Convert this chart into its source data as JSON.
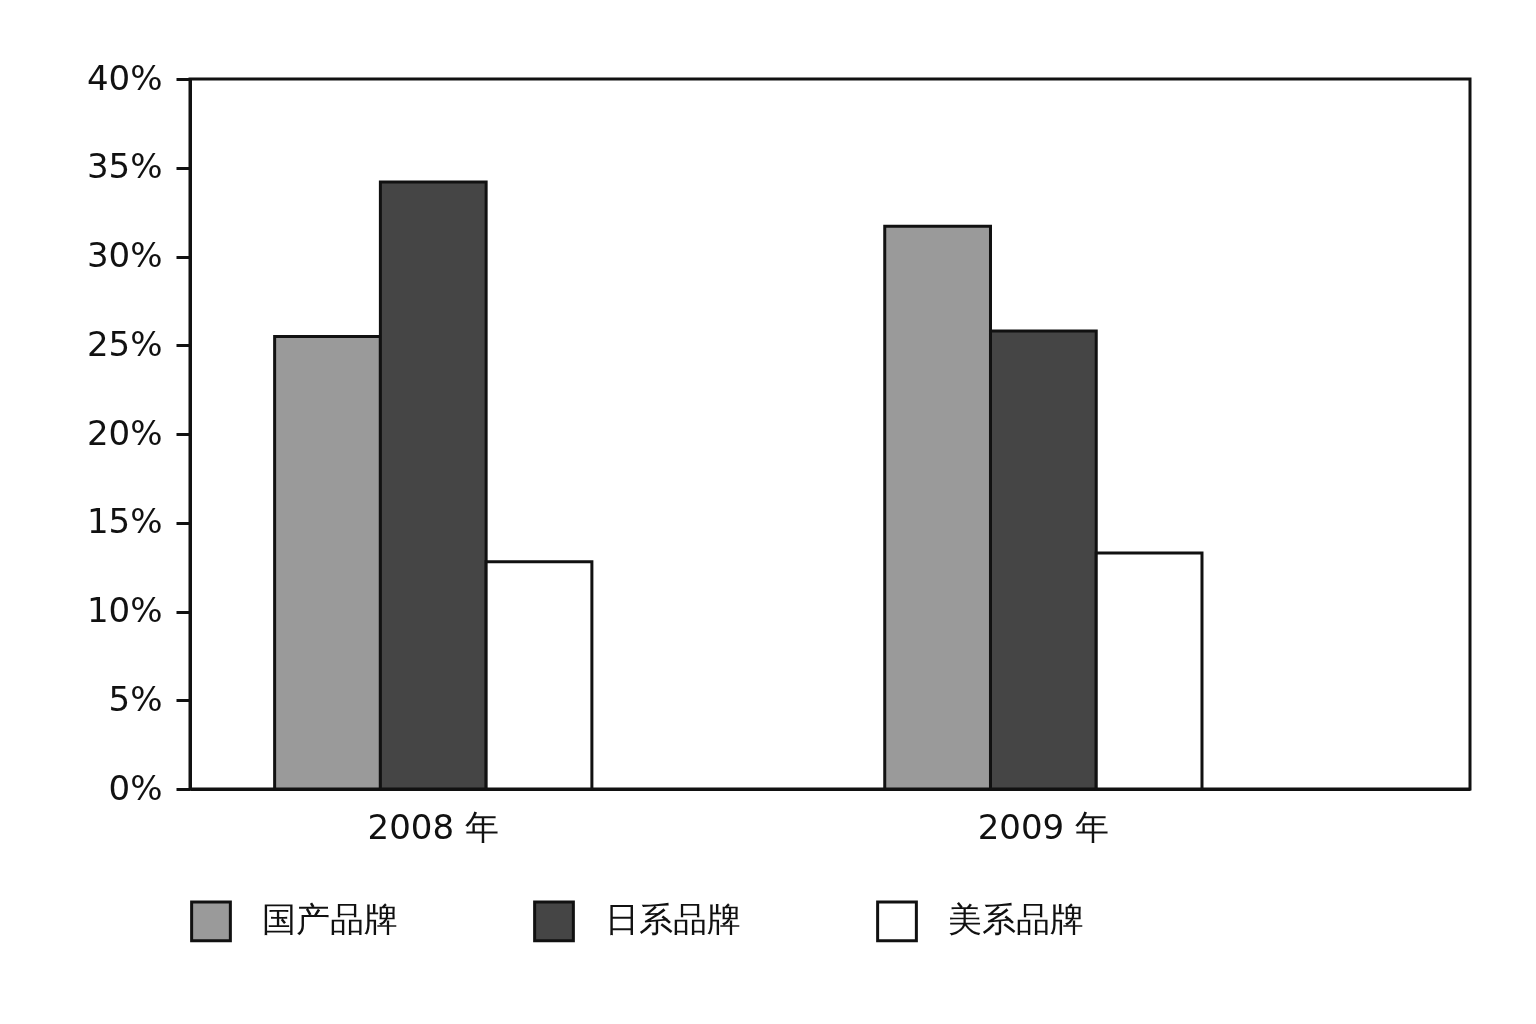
{
  "chart_data": {
    "type": "bar",
    "categories": [
      "2008 年",
      "2009 年"
    ],
    "series": [
      {
        "name": "国产品牌",
        "color": "#9a9a9a",
        "values": [
          25.5,
          31.7
        ]
      },
      {
        "name": "日系品牌",
        "color": "#454545",
        "values": [
          34.2,
          25.8
        ]
      },
      {
        "name": "美系品牌",
        "color": "#ffffff",
        "values": [
          12.8,
          13.3
        ]
      }
    ],
    "ylim": [
      0,
      40
    ],
    "yticks": [
      {
        "value": 0,
        "label": "0%"
      },
      {
        "value": 5,
        "label": "5%"
      },
      {
        "value": 10,
        "label": "10%"
      },
      {
        "value": 15,
        "label": "15%"
      },
      {
        "value": 20,
        "label": "20%"
      },
      {
        "value": 25,
        "label": "25%"
      },
      {
        "value": 30,
        "label": "30%"
      },
      {
        "value": 35,
        "label": "35%"
      },
      {
        "value": 40,
        "label": "40%"
      }
    ],
    "legend": "bottom"
  }
}
